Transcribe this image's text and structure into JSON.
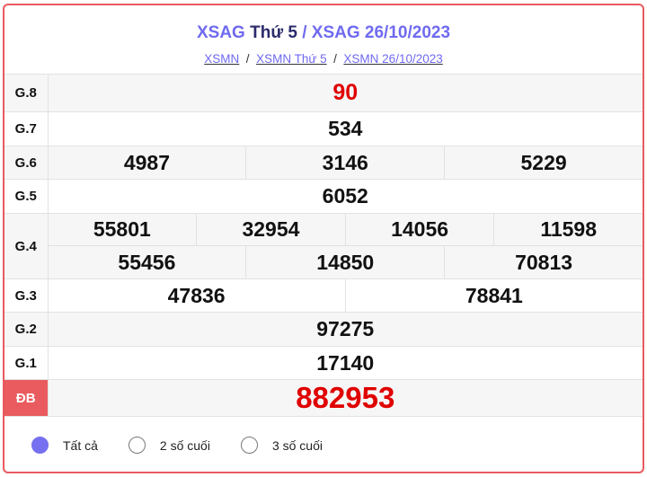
{
  "header": {
    "title_link1": "XSAG",
    "title_day": "Thứ 5",
    "title_sep": " / ",
    "title_link2": "XSAG 26/10/2023",
    "breadcrumb": [
      "XSMN",
      "XSMN Thứ 5",
      "XSMN 26/10/2023"
    ],
    "sep": "/"
  },
  "prizes": [
    {
      "label": "G.8",
      "numbers": [
        "90"
      ]
    },
    {
      "label": "G.7",
      "numbers": [
        "534"
      ]
    },
    {
      "label": "G.6",
      "numbers": [
        "4987",
        "3146",
        "5229"
      ]
    },
    {
      "label": "G.5",
      "numbers": [
        "6052"
      ]
    },
    {
      "label": "G.4",
      "numbers": [
        "55801",
        "32954",
        "14056",
        "11598",
        "55456",
        "14850",
        "70813"
      ]
    },
    {
      "label": "G.3",
      "numbers": [
        "47836",
        "78841"
      ]
    },
    {
      "label": "G.2",
      "numbers": [
        "97275"
      ]
    },
    {
      "label": "G.1",
      "numbers": [
        "17140"
      ]
    },
    {
      "label": "ĐB",
      "numbers": [
        "882953"
      ]
    }
  ],
  "filter": {
    "options": [
      "Tất cả",
      "2 số cuối",
      "3 số cuối"
    ],
    "selected": "Tất cả"
  },
  "colors": {
    "accent": "#6f6af0",
    "special": "#e00000",
    "border": "#e85a5f"
  }
}
